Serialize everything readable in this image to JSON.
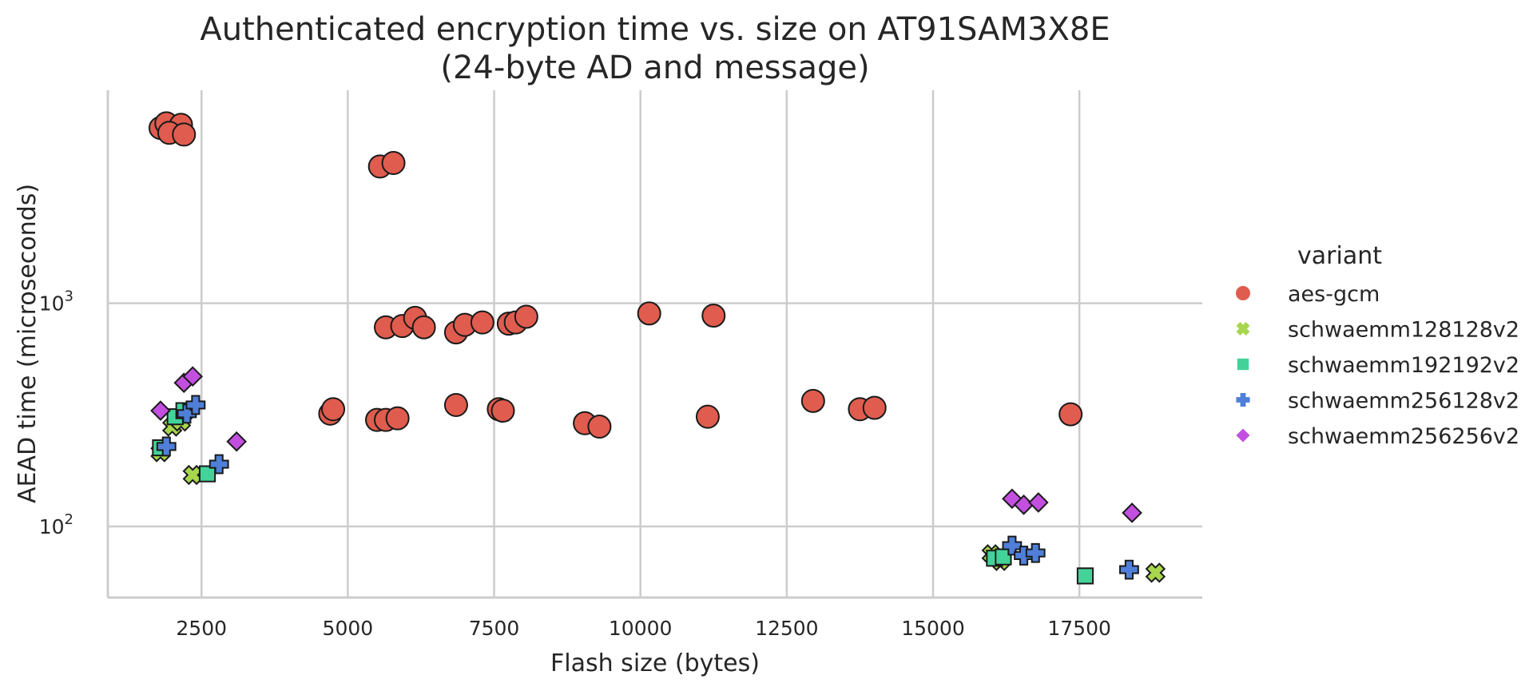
{
  "chart_data": {
    "type": "scatter",
    "title_line1": "Authenticated encryption time vs. size on AT91SAM3X8E",
    "title_line2": "(24-byte AD and message)",
    "xlabel": "Flash size (bytes)",
    "ylabel": "AEAD time (microseconds)",
    "xlim": [
      900,
      19600
    ],
    "ylim": [
      48,
      9000
    ],
    "yscale": "log",
    "x_ticks": [
      2500,
      5000,
      7500,
      10000,
      12500,
      15000,
      17500
    ],
    "x_tick_labels": [
      "2500",
      "5000",
      "7500",
      "10000",
      "12500",
      "15000",
      "17500"
    ],
    "y_ticks": [
      100,
      1000
    ],
    "y_tick_base": "10",
    "y_tick_exponents": [
      "2",
      "3"
    ],
    "grid": true,
    "legend_placement": "right",
    "legend_title": "variant",
    "series": [
      {
        "name": "aes-gcm",
        "marker": "circle",
        "color": "#e05c4e",
        "points": [
          [
            1800,
            6100
          ],
          [
            1900,
            6400
          ],
          [
            2150,
            6300
          ],
          [
            1950,
            5800
          ],
          [
            2200,
            5700
          ],
          [
            5550,
            4100
          ],
          [
            5780,
            4250
          ],
          [
            5650,
            780
          ],
          [
            5930,
            790
          ],
          [
            6150,
            860
          ],
          [
            6300,
            780
          ],
          [
            6850,
            740
          ],
          [
            7000,
            800
          ],
          [
            7300,
            820
          ],
          [
            7750,
            810
          ],
          [
            7870,
            820
          ],
          [
            8050,
            870
          ],
          [
            10150,
            900
          ],
          [
            11250,
            880
          ],
          [
            4700,
            320
          ],
          [
            4750,
            335
          ],
          [
            5500,
            300
          ],
          [
            5650,
            300
          ],
          [
            5850,
            305
          ],
          [
            6850,
            350
          ],
          [
            7580,
            335
          ],
          [
            7650,
            330
          ],
          [
            9050,
            290
          ],
          [
            9300,
            280
          ],
          [
            11150,
            310
          ],
          [
            12950,
            365
          ],
          [
            13750,
            335
          ],
          [
            14000,
            340
          ],
          [
            17350,
            318
          ]
        ]
      },
      {
        "name": "schwaemm128128v2",
        "marker": "x",
        "color": "#a8d64c",
        "points": [
          [
            1800,
            215
          ],
          [
            2000,
            280
          ],
          [
            2150,
            295
          ],
          [
            2350,
            170
          ],
          [
            16000,
            75
          ],
          [
            16150,
            70
          ],
          [
            18800,
            62
          ]
        ]
      },
      {
        "name": "schwaemm192192v2",
        "marker": "square",
        "color": "#43d39a",
        "points": [
          [
            1800,
            225
          ],
          [
            2050,
            310
          ],
          [
            2200,
            330
          ],
          [
            2600,
            172
          ],
          [
            16050,
            72
          ],
          [
            16200,
            73
          ],
          [
            17600,
            60
          ]
        ]
      },
      {
        "name": "schwaemm256128v2",
        "marker": "plus",
        "color": "#4f7fd8",
        "points": [
          [
            1900,
            228
          ],
          [
            2250,
            320
          ],
          [
            2400,
            350
          ],
          [
            2800,
            190
          ],
          [
            16350,
            82
          ],
          [
            16550,
            74
          ],
          [
            16750,
            76
          ],
          [
            18350,
            64
          ]
        ]
      },
      {
        "name": "schwaemm256256v2",
        "marker": "diamond",
        "color": "#c34fe0",
        "points": [
          [
            1800,
            330
          ],
          [
            2200,
            440
          ],
          [
            2350,
            470
          ],
          [
            3100,
            240
          ],
          [
            16350,
            133
          ],
          [
            16550,
            125
          ],
          [
            16800,
            128
          ],
          [
            18400,
            115
          ]
        ]
      }
    ]
  }
}
